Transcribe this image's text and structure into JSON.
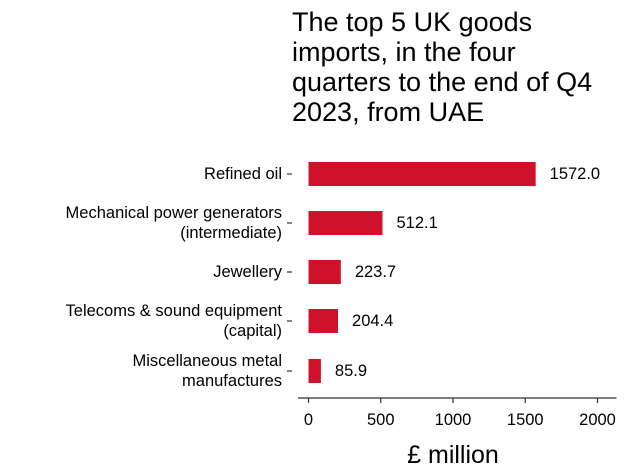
{
  "chart_data": {
    "type": "bar",
    "orientation": "horizontal",
    "title_lines": [
      "The top 5 UK goods",
      "imports, in the four",
      "quarters to the end of Q4",
      "2023, from UAE"
    ],
    "categories": [
      [
        "Refined oil"
      ],
      [
        "Mechanical power generators",
        "(intermediate)"
      ],
      [
        "Jewellery"
      ],
      [
        "Telecoms & sound equipment",
        "(capital)"
      ],
      [
        "Miscellaneous metal",
        "manufactures"
      ]
    ],
    "values": [
      1572.0,
      512.1,
      223.7,
      204.4,
      85.9
    ],
    "value_labels": [
      "1572.0",
      "512.1",
      "223.7",
      "204.4",
      "85.9"
    ],
    "xlabel": "£ million",
    "xlim": [
      0,
      2000
    ],
    "xticks": [
      0,
      500,
      1000,
      1500,
      2000
    ],
    "xtick_labels": [
      "0",
      "500",
      "1000",
      "1500",
      "2000"
    ],
    "bar_color": "#d0112b",
    "grid": false,
    "legend": "none"
  }
}
